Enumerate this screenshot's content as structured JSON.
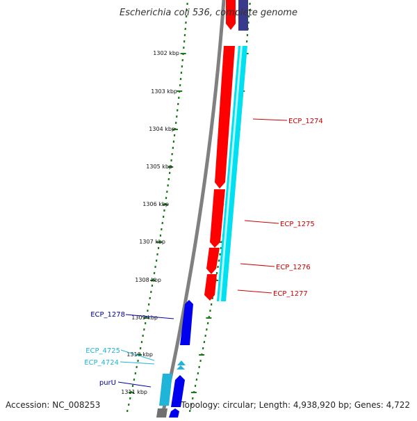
{
  "title": "Escherichia coli 536, complete genome",
  "footer": {
    "accession": "Accession: NC_008253",
    "summary": "Topology: circular; Length: 4,938,920 bp; Genes: 4,722"
  },
  "colors": {
    "backbone": "#808080",
    "tick": "#1a7a1a",
    "red_gene": "#ff0000",
    "cyan_gene": "#00e0f0",
    "blue_gene": "#0000ee",
    "navy_gene": "#3a3a8c",
    "red_label": "#cc0000",
    "cyan_label": "#1fb4d8",
    "blue_label": "#000099"
  },
  "scale_ticks": [
    "1302 kbp",
    "1303 kbp",
    "1304 kbp",
    "1305 kbp",
    "1306 kbp",
    "1307 kbp",
    "1308 kbp",
    "1309 kbp",
    "1310 kbp",
    "1311 kbp"
  ],
  "gene_labels": [
    {
      "id": "ECP_1274",
      "text": "ECP_1274",
      "color": "red"
    },
    {
      "id": "ECP_1275",
      "text": "ECP_1275",
      "color": "red"
    },
    {
      "id": "ECP_1276",
      "text": "ECP_1276",
      "color": "red"
    },
    {
      "id": "ECP_1277",
      "text": "ECP_1277",
      "color": "red"
    },
    {
      "id": "ECP_1278",
      "text": "ECP_1278",
      "color": "blue"
    },
    {
      "id": "ECP_4725",
      "text": "ECP_4725",
      "color": "cyan"
    },
    {
      "id": "ECP_4724",
      "text": "ECP_4724",
      "color": "cyan"
    },
    {
      "id": "purU",
      "text": "purU",
      "color": "blue"
    }
  ]
}
